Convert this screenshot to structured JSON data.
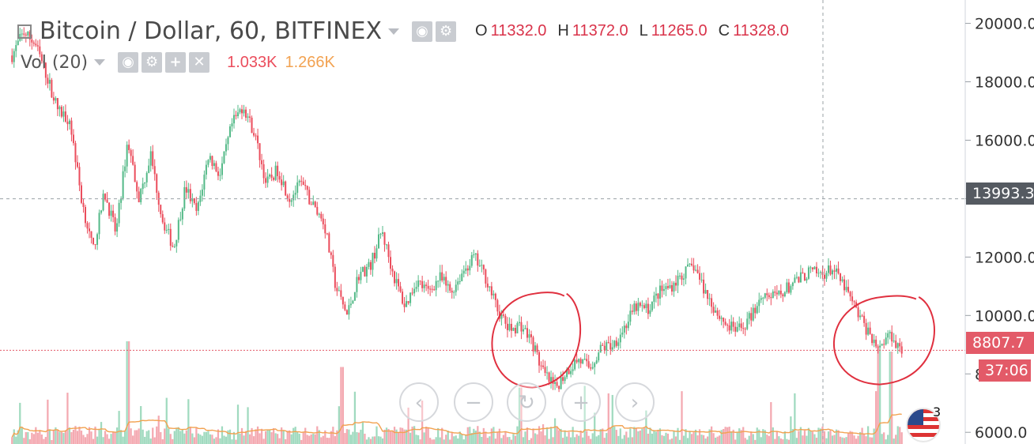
{
  "header": {
    "title": "Bitcoin / Dollar, 60, BITFINEX",
    "ohlc": [
      {
        "key": "O",
        "value": "11332.0"
      },
      {
        "key": "H",
        "value": "11372.0"
      },
      {
        "key": "L",
        "value": "11265.0"
      },
      {
        "key": "C",
        "value": "11328.0"
      }
    ]
  },
  "volume_legend": {
    "label": "Vol (20)",
    "value1": "1.033K",
    "value2": "1.266K"
  },
  "price_tags": {
    "crosshair": "13993.3",
    "last_price": "8807.7",
    "countdown": "37:06"
  },
  "badge": "3",
  "colors": {
    "up": "#53b987",
    "down": "#eb4d5c",
    "vol_up": "#8fd3b4",
    "vol_down": "#f29aa3",
    "ma": "#f2a251",
    "annotation": "#e0303f",
    "price_line": "#e35a68"
  },
  "chart_data": {
    "type": "candlestick",
    "y_axis": {
      "ticks": [
        6000,
        8000,
        10000,
        12000,
        14000,
        16000,
        18000,
        20000
      ],
      "range": [
        5600,
        20800
      ]
    },
    "crosshair_price": 13993.3,
    "last_price": 8807.7,
    "approx_close_path": [
      [
        0,
        18900
      ],
      [
        2,
        19700
      ],
      [
        4,
        19300
      ],
      [
        6,
        18200
      ],
      [
        8,
        17000
      ],
      [
        10,
        16700
      ],
      [
        12,
        14000
      ],
      [
        14,
        12200
      ],
      [
        16,
        14200
      ],
      [
        18,
        12800
      ],
      [
        20,
        16000
      ],
      [
        22,
        14000
      ],
      [
        24,
        15500
      ],
      [
        26,
        13300
      ],
      [
        28,
        12300
      ],
      [
        30,
        14400
      ],
      [
        32,
        13500
      ],
      [
        34,
        15500
      ],
      [
        36,
        14800
      ],
      [
        38,
        16500
      ],
      [
        40,
        17200
      ],
      [
        42,
        16200
      ],
      [
        44,
        14500
      ],
      [
        46,
        15000
      ],
      [
        48,
        14000
      ],
      [
        50,
        14500
      ],
      [
        52,
        13800
      ],
      [
        54,
        13200
      ],
      [
        56,
        11000
      ],
      [
        58,
        10000
      ],
      [
        60,
        11400
      ],
      [
        62,
        11700
      ],
      [
        64,
        12900
      ],
      [
        66,
        11400
      ],
      [
        68,
        10300
      ],
      [
        70,
        11200
      ],
      [
        72,
        10800
      ],
      [
        74,
        11300
      ],
      [
        76,
        10800
      ],
      [
        78,
        11500
      ],
      [
        80,
        12000
      ],
      [
        82,
        11300
      ],
      [
        84,
        10200
      ],
      [
        86,
        9500
      ],
      [
        88,
        9700
      ],
      [
        90,
        9100
      ],
      [
        92,
        8000
      ],
      [
        94,
        7500
      ],
      [
        96,
        8100
      ],
      [
        98,
        8500
      ],
      [
        100,
        8200
      ],
      [
        102,
        8900
      ],
      [
        104,
        9000
      ],
      [
        106,
        9600
      ],
      [
        108,
        10300
      ],
      [
        110,
        10200
      ],
      [
        112,
        10800
      ],
      [
        114,
        11000
      ],
      [
        116,
        11400
      ],
      [
        118,
        11700
      ],
      [
        120,
        10800
      ],
      [
        122,
        10100
      ],
      [
        124,
        9600
      ],
      [
        126,
        9500
      ],
      [
        128,
        10000
      ],
      [
        130,
        10800
      ],
      [
        132,
        10600
      ],
      [
        134,
        10900
      ],
      [
        136,
        11200
      ],
      [
        138,
        11500
      ],
      [
        140,
        11400
      ],
      [
        142,
        11600
      ],
      [
        144,
        11000
      ],
      [
        146,
        10200
      ],
      [
        148,
        9500
      ],
      [
        150,
        8900
      ],
      [
        152,
        9400
      ],
      [
        154,
        8800
      ]
    ],
    "volume_spikes": [
      [
        20,
        1.0
      ],
      [
        57,
        0.75
      ],
      [
        88,
        0.55
      ],
      [
        150,
        0.95
      ],
      [
        152,
        0.9
      ]
    ],
    "annotations": [
      {
        "type": "hand-drawn-circle",
        "center": [
          90,
          9100
        ]
      },
      {
        "type": "hand-drawn-circle",
        "center": [
          150,
          9100
        ]
      }
    ]
  }
}
